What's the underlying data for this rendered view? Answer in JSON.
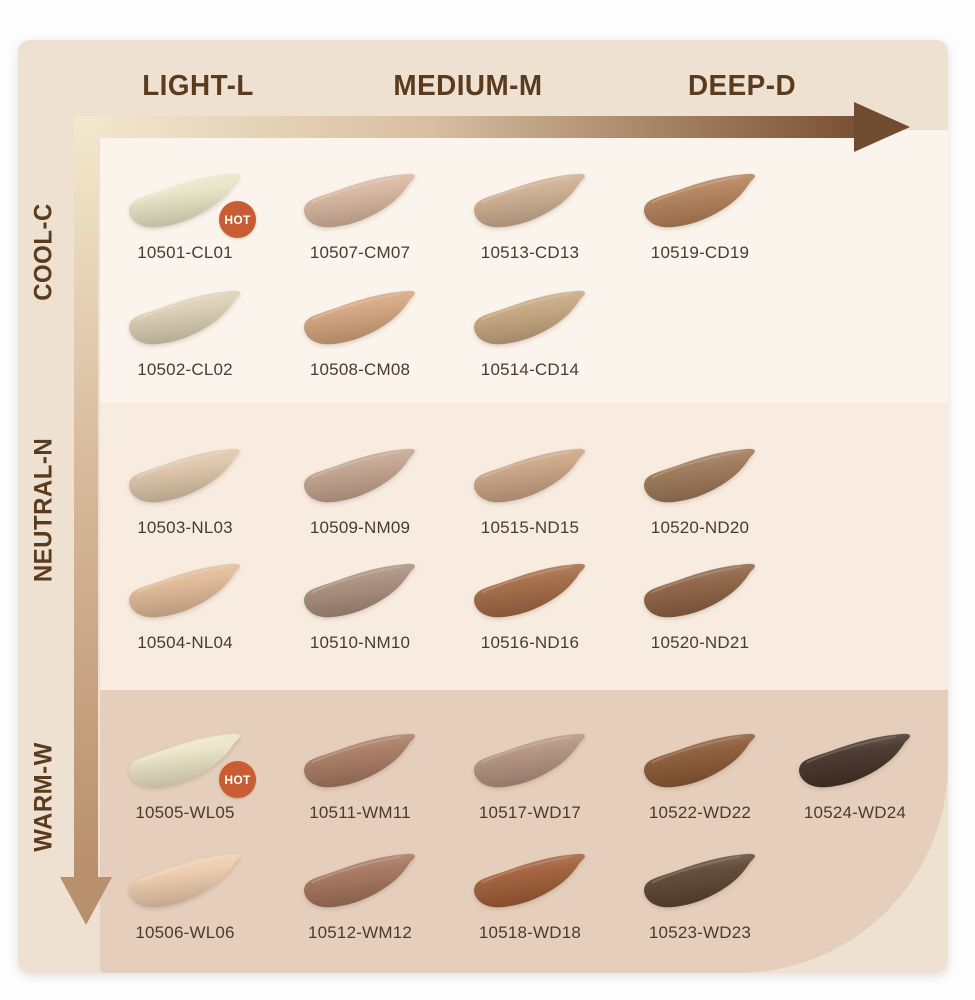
{
  "page": {
    "background": "#fdfdfd",
    "card_background": "#eee1d2"
  },
  "axes": {
    "columns": [
      {
        "label": "LIGHT-L"
      },
      {
        "label": "MEDIUM-M"
      },
      {
        "label": "DEEP-D"
      }
    ],
    "rows": [
      {
        "label": "COOL-C"
      },
      {
        "label": "NEUTRAL-N"
      },
      {
        "label": "WARM-W"
      }
    ],
    "header_text_color": "#5b3b1e"
  },
  "arrows": {
    "horizontal": {
      "direction": "right",
      "from": "#f3e9cd",
      "mid": "#d9bfa2",
      "to": "#7b5134",
      "head_color": "#6f4c2f"
    },
    "vertical": {
      "direction": "down",
      "from": "#f3e9cd",
      "mid": "#d8bb9d",
      "to": "#b88f6c",
      "head_color": "#b8906e"
    }
  },
  "badges": {
    "hot_label": "HOT",
    "hot_color": "#c85c32"
  },
  "swatch_label_color": "#4a3b2e",
  "sections": [
    {
      "name": "COOL",
      "background": "#fbf4ec",
      "rows": [
        [
          {
            "code": "10501-CL01",
            "color": "#e8e4c5",
            "col": 0,
            "hot": true
          },
          {
            "code": "10507-CM07",
            "color": "#d7b59e",
            "col": 1,
            "hot": false
          },
          {
            "code": "10513-CD13",
            "color": "#ccae90",
            "col": 2,
            "hot": false
          },
          {
            "code": "10519-CD19",
            "color": "#b2815a",
            "col": 3,
            "hot": false
          }
        ],
        [
          {
            "code": "10502-CL02",
            "color": "#dbcfb3",
            "col": 0,
            "hot": false
          },
          {
            "code": "10508-CM08",
            "color": "#d3a47f",
            "col": 1,
            "hot": false
          },
          {
            "code": "10514-CD14",
            "color": "#c6a680",
            "col": 2,
            "hot": false
          }
        ]
      ]
    },
    {
      "name": "NEUTRAL",
      "background": "#f8ece1",
      "rows": [
        [
          {
            "code": "10503-NL03",
            "color": "#ddc5a9",
            "col": 0,
            "hot": false
          },
          {
            "code": "10509-NM09",
            "color": "#c2a38d",
            "col": 1,
            "hot": false
          },
          {
            "code": "10515-ND15",
            "color": "#c9a383",
            "col": 2,
            "hot": false
          },
          {
            "code": "10520-ND20",
            "color": "#9e7757",
            "col": 3,
            "hot": false
          }
        ],
        [
          {
            "code": "10504-NL04",
            "color": "#e0b996",
            "col": 0,
            "hot": false
          },
          {
            "code": "10510-NM10",
            "color": "#a98d7b",
            "col": 1,
            "hot": false
          },
          {
            "code": "10516-ND16",
            "color": "#a26a45",
            "col": 2,
            "hot": false
          },
          {
            "code": "10520-ND21",
            "color": "#8d6244",
            "col": 3,
            "hot": false
          }
        ]
      ]
    },
    {
      "name": "WARM",
      "background": "#e5cfbc",
      "rows": [
        [
          {
            "code": "10505-WL05",
            "color": "#eae4c6",
            "col": 0,
            "hot": true
          },
          {
            "code": "10511-WM11",
            "color": "#a87a62",
            "col": 1,
            "hot": false
          },
          {
            "code": "10517-WD17",
            "color": "#b29280",
            "col": 2,
            "hot": false
          },
          {
            "code": "10522-WD22",
            "color": "#8a5a36",
            "col": 3,
            "hot": false
          },
          {
            "code": "10524-WD24",
            "color": "#453329",
            "col": 4,
            "hot": false
          }
        ],
        [
          {
            "code": "10506-WL06",
            "color": "#edcbac",
            "col": 0,
            "hot": false
          },
          {
            "code": "10512-WM12",
            "color": "#a4745c",
            "col": 1,
            "hot": false
          },
          {
            "code": "10518-WD18",
            "color": "#a05e38",
            "col": 2,
            "hot": false
          },
          {
            "code": "10523-WD23",
            "color": "#5d4532",
            "col": 3,
            "hot": false
          }
        ]
      ]
    }
  ]
}
